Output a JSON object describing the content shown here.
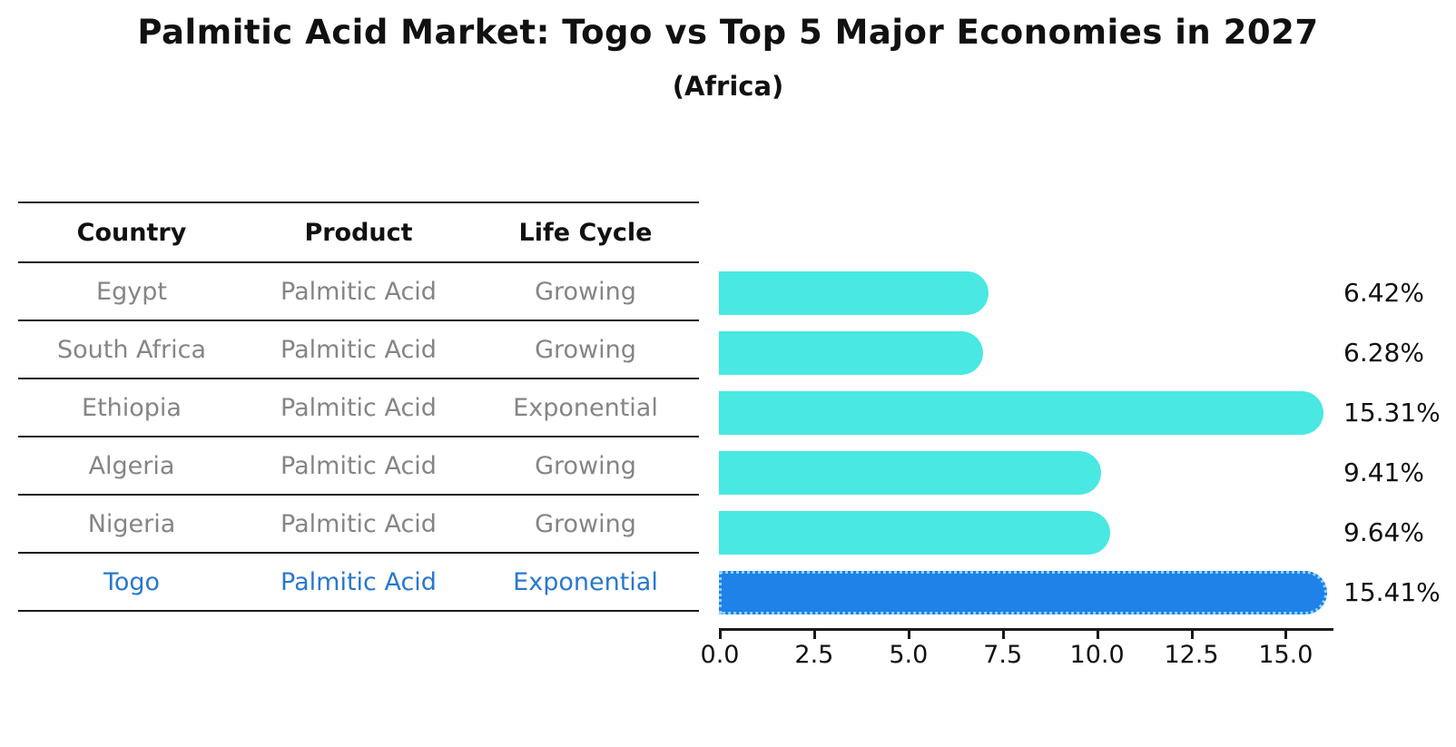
{
  "title": "Palmitic Acid Market: Togo vs Top 5 Major Economies in 2027",
  "subtitle": "(Africa)",
  "table": {
    "headers": [
      "Country",
      "Product",
      "Life Cycle"
    ],
    "rows": [
      {
        "country": "Egypt",
        "product": "Palmitic Acid",
        "life_cycle": "Growing",
        "value": 6.42,
        "value_label": "6.42%",
        "highlighted": false
      },
      {
        "country": "South Africa",
        "product": "Palmitic Acid",
        "life_cycle": "Growing",
        "value": 6.28,
        "value_label": "6.28%",
        "highlighted": false
      },
      {
        "country": "Ethiopia",
        "product": "Palmitic Acid",
        "life_cycle": "Exponential",
        "value": 15.31,
        "value_label": "15.31%",
        "highlighted": false
      },
      {
        "country": "Algeria",
        "product": "Palmitic Acid",
        "life_cycle": "Growing",
        "value": 9.41,
        "value_label": "9.41%",
        "highlighted": false
      },
      {
        "country": "Nigeria",
        "product": "Palmitic Acid",
        "life_cycle": "Growing",
        "value": 9.64,
        "value_label": "9.64%",
        "highlighted": false
      },
      {
        "country": "Togo",
        "product": "Palmitic Acid",
        "life_cycle": "Exponential",
        "value": 15.41,
        "value_label": "15.41%",
        "highlighted": true
      }
    ]
  },
  "chart_data": {
    "type": "bar",
    "orientation": "horizontal",
    "title": "Palmitic Acid Market: Togo vs Top 5 Major Economies in 2027",
    "subtitle": "(Africa)",
    "categories": [
      "Egypt",
      "South Africa",
      "Ethiopia",
      "Algeria",
      "Nigeria",
      "Togo"
    ],
    "values": [
      6.42,
      6.28,
      15.31,
      9.41,
      9.64,
      15.41
    ],
    "data_labels": [
      "6.42%",
      "6.28%",
      "15.31%",
      "9.41%",
      "9.64%",
      "15.41%"
    ],
    "xlabel": "",
    "ylabel": "",
    "xlim": [
      0,
      16.25
    ],
    "x_ticks": [
      0.0,
      2.5,
      5.0,
      7.5,
      10.0,
      12.5,
      15.0
    ],
    "x_tick_labels": [
      "0.0",
      "2.5",
      "5.0",
      "7.5",
      "10.0",
      "12.5",
      "15.0"
    ],
    "grid": false,
    "legend": false,
    "bar_color": "#49E8E2",
    "highlight_bar_color": "#1E82E8",
    "highlight_category": "Togo"
  },
  "colors": {
    "background": "#ffffff",
    "bar": "#49E8E2",
    "highlight_bar": "#1E82E8",
    "highlight_bar_edge": "#8fd4f8",
    "highlight_text": "#2878CD",
    "row_text": "#858585",
    "header_text": "#111111",
    "line": "#1a1a1a"
  }
}
